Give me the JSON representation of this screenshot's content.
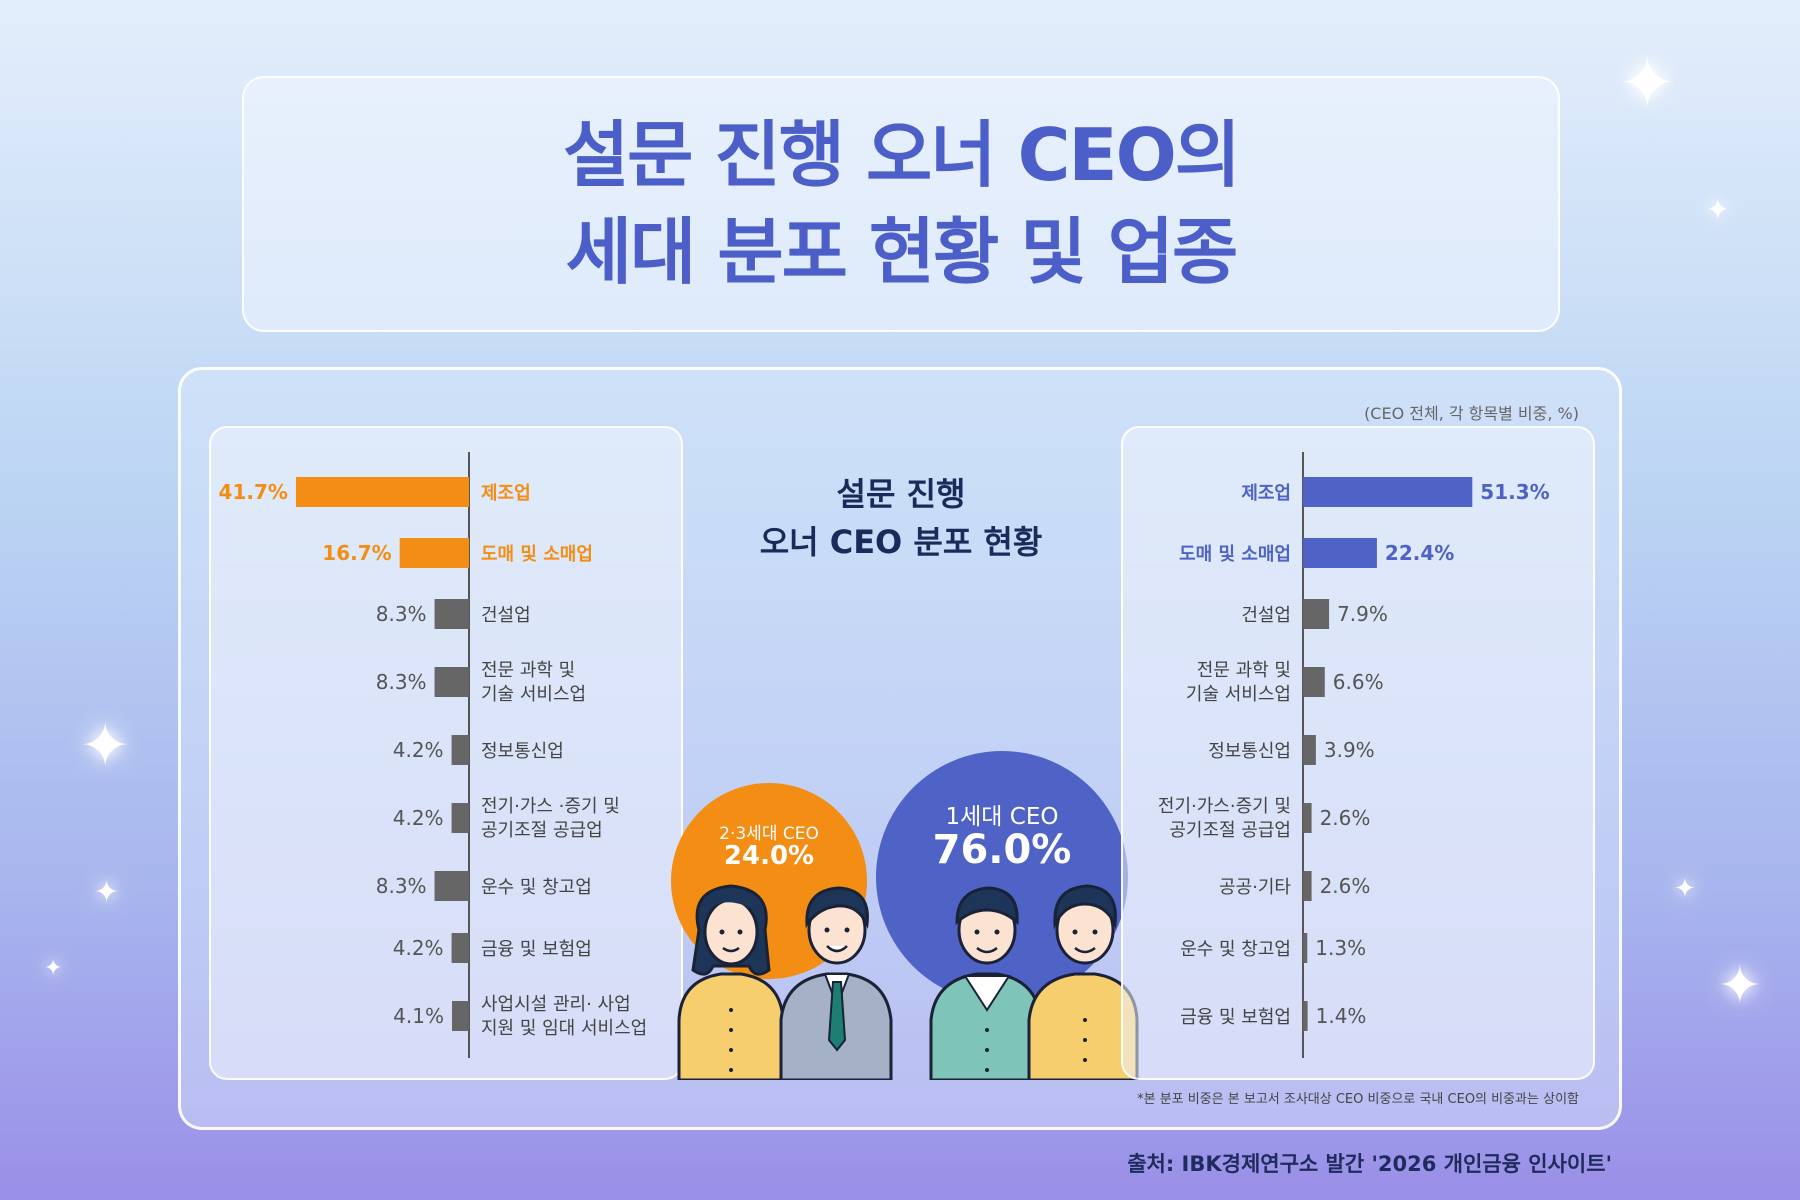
{
  "title": {
    "line1": "설문 진행 오너 CEO의",
    "line2": "세대 분포 현황 및 업종"
  },
  "unit_note": "(CEO 전체, 각 항목별 비중, %)",
  "center_title": {
    "line1": "설문 진행",
    "line2": "오너 CEO 분포 현황"
  },
  "bubbles": {
    "succeeding": {
      "label": "2·3세대 CEO",
      "value": "24.0%"
    },
    "first": {
      "label": "1세대 CEO",
      "value": "76.0%"
    }
  },
  "footnote": "*본 분포 비중은 본 보고서 조사대상 CEO 비중으로 국내 CEO의 비중과는 상이함",
  "source": "출처: IBK경제연구소 발간 '2026 개인금융 인사이트'",
  "colors": {
    "orange": "#f38d14",
    "blue": "#4f63c6",
    "gray": "#666666",
    "title": "#4c5fc8"
  },
  "icons": [
    "sparkle-icon",
    "people-illustration"
  ],
  "chart_data": [
    {
      "type": "bar",
      "orientation": "horizontal",
      "direction": "left",
      "name": "2·3세대 CEO",
      "categories": [
        [
          "제조업"
        ],
        [
          "도매 및 소매업"
        ],
        [
          "건설업"
        ],
        [
          "전문 과학 및",
          "기술 서비스업"
        ],
        [
          "정보통신업"
        ],
        [
          "전기·가스 ·증기 및",
          "공기조절 공급업"
        ],
        [
          "운수 및 창고업"
        ],
        [
          "금융 및 보험업"
        ],
        [
          "사업시설 관리· 사업",
          "지원 및 임대 서비스업"
        ]
      ],
      "values": [
        41.7,
        16.7,
        8.3,
        8.3,
        4.2,
        4.2,
        8.3,
        4.2,
        4.1
      ],
      "labels": [
        "41.7%",
        "16.7%",
        "8.3%",
        "8.3%",
        "4.2%",
        "4.2%",
        "8.3%",
        "4.2%",
        "4.1%"
      ],
      "highlight": [
        0,
        1
      ],
      "highlight_color": "#f38d14",
      "bar_color": "#666666"
    },
    {
      "type": "bar",
      "orientation": "horizontal",
      "direction": "right",
      "name": "1세대 CEO",
      "categories": [
        [
          "제조업"
        ],
        [
          "도매 및 소매업"
        ],
        [
          "건설업"
        ],
        [
          "전문 과학 및",
          "기술 서비스업"
        ],
        [
          "정보통신업"
        ],
        [
          "전기·가스·증기 및",
          "공기조절 공급업"
        ],
        [
          "공공·기타"
        ],
        [
          "운수 및 창고업"
        ],
        [
          "금융 및 보험업"
        ]
      ],
      "values": [
        51.3,
        22.4,
        7.9,
        6.6,
        3.9,
        2.6,
        2.6,
        1.3,
        1.4
      ],
      "labels": [
        "51.3%",
        "22.4%",
        "7.9%",
        "6.6%",
        "3.9%",
        "2.6%",
        "2.6%",
        "1.3%",
        "1.4%"
      ],
      "highlight": [
        0,
        1
      ],
      "highlight_color": "#4f63c6",
      "bar_color": "#666666"
    }
  ]
}
